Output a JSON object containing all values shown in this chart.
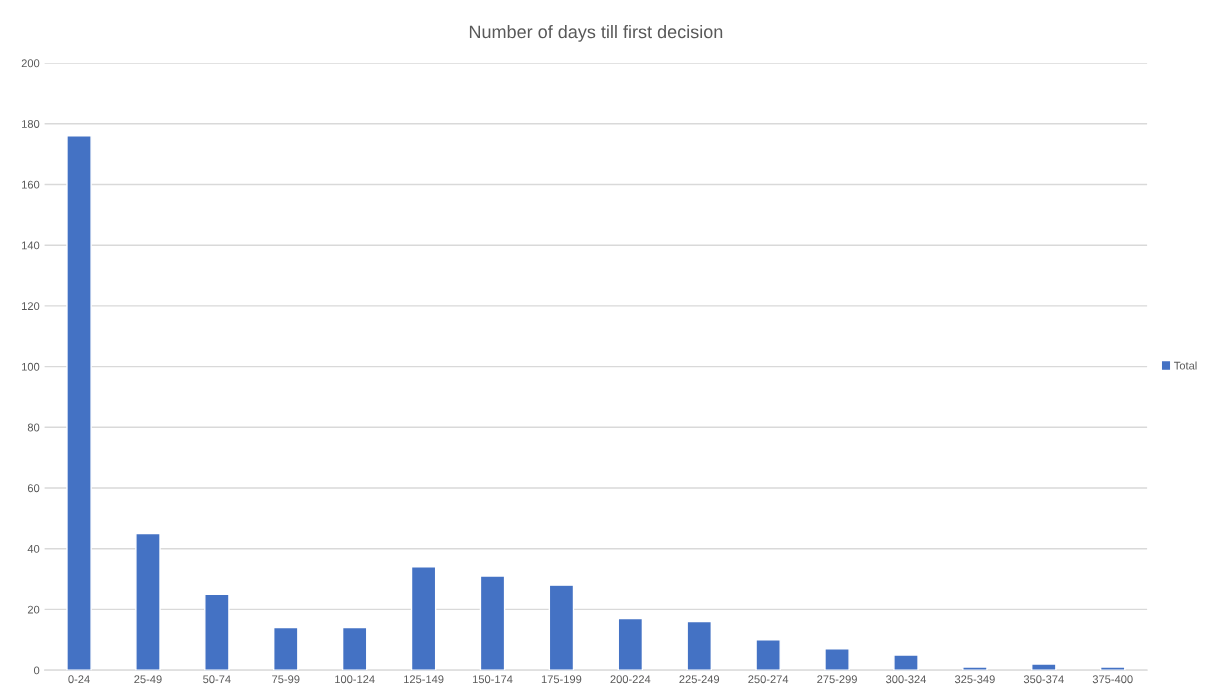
{
  "chart_data": {
    "type": "bar",
    "title": "Number of days till first decision",
    "categories": [
      "0-24",
      "25-49",
      "50-74",
      "75-99",
      "100-124",
      "125-149",
      "150-174",
      "175-199",
      "200-224",
      "225-249",
      "250-274",
      "275-299",
      "300-324",
      "325-349",
      "350-374",
      "375-400"
    ],
    "series": [
      {
        "name": "Total",
        "color": "#4472c4",
        "values": [
          176,
          45,
          25,
          14,
          14,
          34,
          31,
          28,
          17,
          16,
          10,
          7,
          5,
          1,
          2,
          1
        ]
      }
    ],
    "ylim": [
      0,
      200
    ],
    "yticks": [
      0,
      20,
      40,
      60,
      80,
      100,
      120,
      140,
      160,
      180,
      200
    ],
    "grid": "y",
    "legend": "right"
  }
}
